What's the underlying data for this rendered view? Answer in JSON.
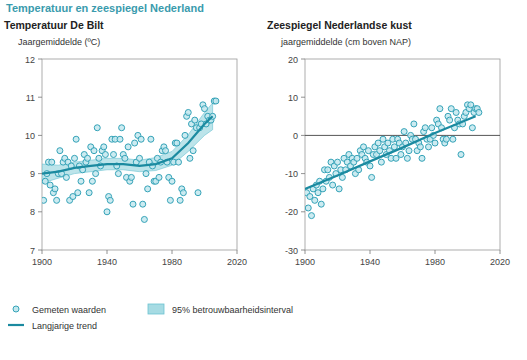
{
  "title": "Temperatuur en zeespiegel Nederland",
  "chart_data": [
    {
      "type": "scatter",
      "title": "Temperatuur De Bilt",
      "y_label": "Jaargemiddelde (ºC)",
      "xlim": [
        1900,
        2020
      ],
      "xticks": [
        1900,
        1940,
        1980,
        2020
      ],
      "ylim": [
        7,
        12
      ],
      "yticks": [
        7,
        8,
        9,
        10,
        11,
        12
      ],
      "grid": false,
      "legend": "bottom left",
      "series": [
        {
          "name": "Gemeten waarden",
          "type": "scatter",
          "marker": "circle",
          "color": "#35a3b8",
          "x": [
            1901,
            1902,
            1903,
            1904,
            1905,
            1906,
            1907,
            1908,
            1909,
            1910,
            1911,
            1912,
            1913,
            1914,
            1915,
            1916,
            1917,
            1918,
            1919,
            1920,
            1921,
            1922,
            1923,
            1924,
            1925,
            1926,
            1927,
            1928,
            1929,
            1930,
            1931,
            1932,
            1933,
            1934,
            1935,
            1936,
            1937,
            1938,
            1939,
            1940,
            1941,
            1942,
            1943,
            1944,
            1945,
            1946,
            1947,
            1948,
            1949,
            1950,
            1951,
            1952,
            1953,
            1954,
            1955,
            1956,
            1957,
            1958,
            1959,
            1960,
            1961,
            1962,
            1963,
            1964,
            1965,
            1966,
            1967,
            1968,
            1969,
            1970,
            1971,
            1972,
            1973,
            1974,
            1975,
            1976,
            1977,
            1978,
            1979,
            1980,
            1981,
            1982,
            1983,
            1984,
            1985,
            1986,
            1987,
            1988,
            1989,
            1990,
            1991,
            1992,
            1993,
            1994,
            1995,
            1996,
            1997,
            1998,
            1999,
            2000,
            2001,
            2002,
            2003,
            2004,
            2005,
            2006,
            2007
          ],
          "values": [
            8.3,
            8.8,
            9.0,
            9.3,
            8.7,
            9.3,
            8.5,
            8.6,
            8.3,
            9.0,
            9.6,
            9.0,
            9.3,
            9.4,
            8.9,
            9.3,
            8.3,
            9.2,
            8.4,
            9.4,
            9.9,
            8.5,
            9.2,
            8.8,
            9.1,
            9.5,
            9.3,
            9.4,
            8.5,
            9.7,
            8.8,
            9.6,
            9.0,
            10.2,
            9.4,
            9.2,
            9.6,
            9.7,
            9.5,
            8.0,
            8.4,
            8.3,
            9.9,
            9.5,
            9.9,
            9.2,
            9.0,
            9.9,
            10.2,
            9.5,
            9.4,
            8.9,
            9.7,
            8.8,
            8.9,
            8.2,
            9.8,
            9.3,
            10.0,
            9.4,
            9.9,
            8.2,
            7.8,
            9.0,
            8.6,
            9.3,
            9.9,
            9.2,
            8.8,
            8.8,
            9.4,
            8.9,
            9.3,
            9.6,
            9.7,
            9.6,
            9.3,
            8.9,
            8.3,
            8.8,
            9.3,
            9.8,
            9.8,
            9.3,
            8.3,
            8.6,
            8.5,
            10.0,
            10.5,
            10.6,
            9.4,
            10.3,
            9.6,
            10.4,
            10.2,
            8.5,
            10.2,
            10.3,
            10.8,
            10.7,
            10.3,
            10.5,
            10.4,
            10.4,
            10.5,
            10.9,
            10.9
          ]
        },
        {
          "name": "Langjarige trend",
          "type": "line",
          "line_style": "solid",
          "color": "#1b8aa0",
          "x": [
            1900,
            1910,
            1920,
            1930,
            1940,
            1950,
            1960,
            1970,
            1980,
            1990,
            2000,
            2005
          ],
          "values": [
            9.0,
            9.05,
            9.15,
            9.2,
            9.25,
            9.25,
            9.2,
            9.25,
            9.4,
            9.8,
            10.3,
            10.5
          ]
        },
        {
          "name": "95% betrouwbaarheidsinterval",
          "type": "band",
          "color": "#a6dbe3",
          "x": [
            1900,
            1910,
            1920,
            1930,
            1940,
            1950,
            1960,
            1970,
            1980,
            1990,
            2000,
            2005
          ],
          "lower": [
            8.75,
            8.88,
            9.0,
            9.05,
            9.1,
            9.1,
            9.05,
            9.08,
            9.22,
            9.58,
            10.0,
            10.15
          ],
          "upper": [
            9.25,
            9.22,
            9.3,
            9.35,
            9.4,
            9.4,
            9.35,
            9.42,
            9.58,
            10.02,
            10.6,
            10.85
          ]
        }
      ]
    },
    {
      "type": "scatter",
      "title": "Zeespiegel Nederlandse kust",
      "y_label": "jaargemiddelde (cm boven NAP)",
      "xlim": [
        1900,
        2020
      ],
      "xticks": [
        1900,
        1940,
        1980,
        2020
      ],
      "ylim": [
        -30,
        20
      ],
      "yticks": [
        -30,
        -20,
        -10,
        0,
        10,
        20
      ],
      "grid": false,
      "series": [
        {
          "type": "scatter",
          "marker": "circle",
          "color": "#35a3b8",
          "x": [
            1901,
            1902,
            1903,
            1904,
            1905,
            1906,
            1907,
            1908,
            1909,
            1910,
            1911,
            1912,
            1913,
            1914,
            1915,
            1916,
            1917,
            1918,
            1919,
            1920,
            1921,
            1922,
            1923,
            1924,
            1925,
            1926,
            1927,
            1928,
            1929,
            1930,
            1931,
            1932,
            1933,
            1934,
            1935,
            1936,
            1937,
            1938,
            1939,
            1940,
            1941,
            1942,
            1943,
            1944,
            1945,
            1946,
            1947,
            1948,
            1949,
            1950,
            1951,
            1952,
            1953,
            1954,
            1955,
            1956,
            1957,
            1958,
            1959,
            1960,
            1961,
            1962,
            1963,
            1964,
            1965,
            1966,
            1967,
            1968,
            1969,
            1970,
            1971,
            1972,
            1973,
            1974,
            1975,
            1976,
            1977,
            1978,
            1979,
            1980,
            1981,
            1982,
            1983,
            1984,
            1985,
            1986,
            1987,
            1988,
            1989,
            1990,
            1991,
            1992,
            1993,
            1994,
            1995,
            1996,
            1997,
            1998,
            1999,
            2000,
            2001,
            2002,
            2003,
            2004,
            2005,
            2006,
            2007
          ],
          "values": [
            -15,
            -19,
            -16,
            -21,
            -14,
            -17,
            -13,
            -15,
            -12,
            -18,
            -14,
            -9,
            -12,
            -9,
            -11,
            -7,
            -13,
            -8,
            -10,
            -7,
            -14,
            -9,
            -11,
            -6,
            -9,
            -7,
            -5,
            -8,
            -6,
            -7,
            -10,
            -6,
            -9,
            -4,
            -5,
            -3,
            -6,
            -7,
            -4,
            -8,
            -11,
            -5,
            -3,
            -5,
            -2,
            -4,
            -7,
            -1,
            -3,
            -5,
            -2,
            -4,
            -6,
            -1,
            -3,
            -6,
            -1,
            -2,
            -5,
            -3,
            1,
            -2,
            -6,
            -4,
            0,
            -1,
            3,
            -1,
            -4,
            -2,
            -3,
            -6,
            1,
            2,
            -1,
            -3,
            -1,
            2,
            0,
            -2,
            4,
            3,
            7,
            2,
            -1,
            -2,
            -1,
            5,
            4,
            7,
            -1,
            2,
            6,
            4,
            3,
            -5,
            3,
            5,
            6,
            8,
            7,
            8,
            2,
            6,
            7,
            7,
            6
          ]
        },
        {
          "type": "line",
          "line_style": "solid",
          "color": "#1b8aa0",
          "x": [
            1900,
            1920,
            1940,
            1960,
            1980,
            2005
          ],
          "values": [
            -14,
            -10.5,
            -6.8,
            -3.2,
            0.6,
            5
          ]
        },
        {
          "type": "hline",
          "color": "#555555",
          "values": [
            0
          ]
        }
      ]
    }
  ]
}
